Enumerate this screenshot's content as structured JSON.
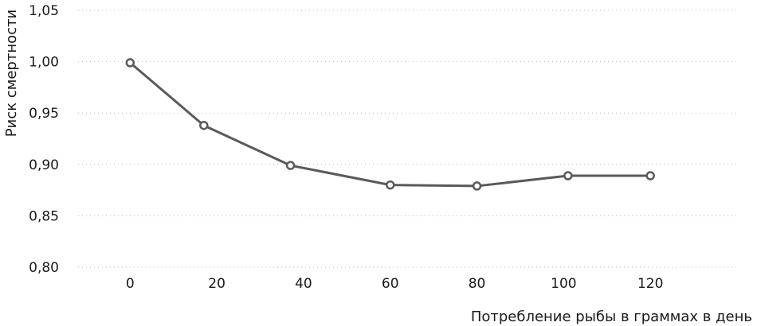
{
  "chart_data": {
    "type": "line",
    "title": "",
    "xlabel": "Потребление рыбы в граммах в день",
    "ylabel": "Риск смертности",
    "x": [
      0,
      17,
      37,
      60,
      80,
      101,
      120
    ],
    "series": [
      {
        "values": [
          0.999,
          0.938,
          0.899,
          0.88,
          0.879,
          0.889,
          0.889
        ]
      }
    ],
    "xlim": [
      -12,
      140
    ],
    "ylim": [
      0.8,
      1.05
    ],
    "xticks": [
      0,
      20,
      40,
      60,
      80,
      100,
      120
    ],
    "xtick_labels": [
      "0",
      "20",
      "40",
      "60",
      "80",
      "100",
      "120"
    ],
    "yticks": [
      0.8,
      0.85,
      0.9,
      0.95,
      1.0,
      1.05
    ],
    "ytick_labels": [
      "0,80",
      "0,85",
      "0,90",
      "0,95",
      "1,00",
      "1,05"
    ],
    "grid": true,
    "grid_style": "dotted-horizontal",
    "legend": "none",
    "colors": {
      "line": "#5a5a5a",
      "marker_fill": "#ffffff",
      "grid": "#bdbdbd",
      "text": "#1a1a1a"
    }
  }
}
